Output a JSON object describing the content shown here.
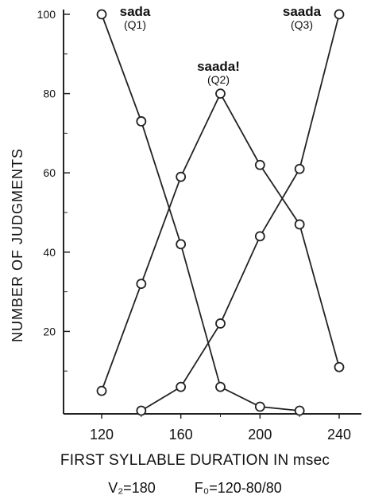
{
  "chart_data": {
    "type": "line",
    "title": "",
    "xlabel": "FIRST SYLLABLE DURATION IN msec",
    "ylabel": "NUMBER OF JUDGMENTS",
    "xlim": [
      100,
      250
    ],
    "ylim": [
      0,
      100
    ],
    "x_ticks": [
      120,
      160,
      200,
      240
    ],
    "y_ticks": [
      20,
      40,
      60,
      80,
      100
    ],
    "grid": false,
    "series": [
      {
        "name": "sada",
        "code": "(Q1)",
        "x": [
          120,
          140,
          160,
          180,
          200,
          220
        ],
        "y": [
          100,
          73,
          42,
          6,
          1,
          0
        ]
      },
      {
        "name": "saada!",
        "code": "(Q2)",
        "x": [
          120,
          140,
          160,
          180,
          200,
          220,
          240
        ],
        "y": [
          5,
          32,
          59,
          80,
          62,
          47,
          11
        ]
      },
      {
        "name": "saada",
        "code": "(Q3)",
        "x": [
          140,
          160,
          180,
          200,
          220,
          240
        ],
        "y": [
          0,
          6,
          22,
          44,
          61,
          100
        ]
      }
    ],
    "footnote": [
      "V₂=180",
      "F₀=120-80/80"
    ],
    "line_color": "#222222",
    "marker_fill": "#ffffff"
  }
}
